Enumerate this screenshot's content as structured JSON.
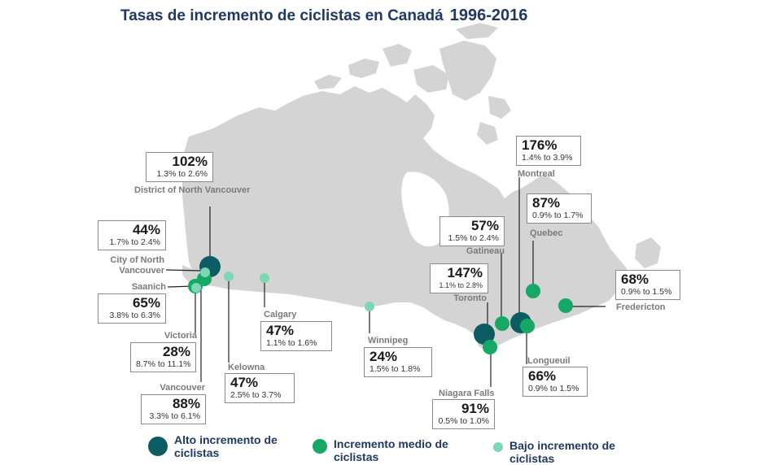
{
  "title": "Tasas de incremento de ciclistas en Canadá",
  "years": "1996-2016",
  "colors": {
    "alto": "#0b5d63",
    "medio": "#17a866",
    "bajo": "#7dd6b4",
    "land": "#d4d4d4"
  },
  "legend": [
    {
      "key": "alto",
      "label": "Alto incremento de ciclistas"
    },
    {
      "key": "medio",
      "label": "Incremento medio de ciclistas"
    },
    {
      "key": "bajo",
      "label": "Bajo incremento de ciclistas"
    }
  ],
  "cities": [
    {
      "id": "district-north-vancouver",
      "name": "District of North Vancouver",
      "pct": "102%",
      "range": "1.3% to 2.6%",
      "level": "alto"
    },
    {
      "id": "city-north-vancouver",
      "name": "City of North Vancouver",
      "pct": "44%",
      "range": "1.7% to 2.4%",
      "level": "bajo"
    },
    {
      "id": "saanich",
      "name": "Saanich",
      "pct": "65%",
      "range": "3.8% to 6.3%",
      "level": "medio"
    },
    {
      "id": "victoria",
      "name": "Victoria",
      "pct": "28%",
      "range": "8.7% to 11.1%",
      "level": "bajo"
    },
    {
      "id": "vancouver",
      "name": "Vancouver",
      "pct": "88%",
      "range": "3.3% to 6.1%",
      "level": "medio"
    },
    {
      "id": "kelowna",
      "name": "Kelowna",
      "pct": "47%",
      "range": "2.5% to 3.7%",
      "level": "bajo"
    },
    {
      "id": "calgary",
      "name": "Calgary",
      "pct": "47%",
      "range": "1.1% to 1.6%",
      "level": "bajo"
    },
    {
      "id": "winnipeg",
      "name": "Winnipeg",
      "pct": "24%",
      "range": "1.5% to 1.8%",
      "level": "bajo"
    },
    {
      "id": "gatineau",
      "name": "Gatineau",
      "pct": "57%",
      "range": "1.5% to 2.4%",
      "level": "medio"
    },
    {
      "id": "toronto",
      "name": "Toronto",
      "pct": "147%",
      "range": "1.1% to 2.8%",
      "level": "alto"
    },
    {
      "id": "niagara-falls",
      "name": "Niagara Falls",
      "pct": "91%",
      "range": "0.5% to 1.0%",
      "level": "medio"
    },
    {
      "id": "montreal",
      "name": "Montreal",
      "pct": "176%",
      "range": "1.4% to 3.9%",
      "level": "alto"
    },
    {
      "id": "quebec",
      "name": "Quebec",
      "pct": "87%",
      "range": "0.9% to 1.7%",
      "level": "medio"
    },
    {
      "id": "longueuil",
      "name": "Longueuil",
      "pct": "66%",
      "range": "0.9% to 1.5%",
      "level": "medio"
    },
    {
      "id": "fredericton",
      "name": "Fredericton",
      "pct": "68%",
      "range": "0.9% to 1.5%",
      "level": "medio"
    }
  ]
}
